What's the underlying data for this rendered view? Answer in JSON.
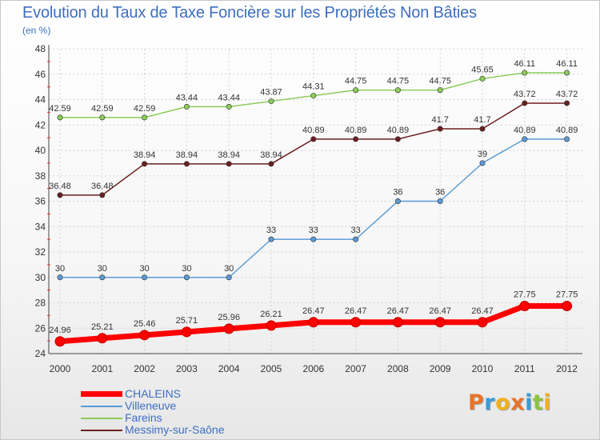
{
  "title": "Evolution du Taux de Taxe Foncière sur les Propriétés Non Bâties",
  "subtitle": "(en %)",
  "logo_letters": [
    "P",
    "r",
    "o",
    "x",
    "i",
    "t",
    "i"
  ],
  "logo_colors": [
    "#e8742a",
    "#3a9bd6",
    "#f1b11b",
    "#e8742a",
    "#3a9bd6",
    "#8bc53f",
    "#f1b11b"
  ],
  "chart_data": {
    "type": "line",
    "categories": [
      "2000",
      "2001",
      "2002",
      "2003",
      "2004",
      "2005",
      "2006",
      "2007",
      "2008",
      "2009",
      "2010",
      "2011",
      "2012"
    ],
    "ylim": [
      24,
      48
    ],
    "yticks": [
      "24",
      "26",
      "28",
      "30",
      "32",
      "34",
      "36",
      "38",
      "40",
      "42",
      "44",
      "46",
      "48"
    ],
    "grid": true,
    "series": [
      {
        "name": "Fareins",
        "color": "#8ccc5a",
        "values": [
          42.59,
          42.59,
          42.59,
          43.44,
          43.44,
          43.87,
          44.31,
          44.75,
          44.75,
          44.75,
          45.65,
          46.11,
          46.11
        ],
        "labels": [
          "42.59",
          "42.59",
          "42.59",
          "43.44",
          "43.44",
          "43.87",
          "44.31",
          "44.75",
          "44.75",
          "44.75",
          "45.65",
          "46.11",
          "46.11"
        ]
      },
      {
        "name": "Messimy-sur-Saône",
        "color": "#6b1f1f",
        "values": [
          36.48,
          36.48,
          38.94,
          38.94,
          38.94,
          38.94,
          40.89,
          40.89,
          40.89,
          41.7,
          41.7,
          43.72,
          43.72
        ],
        "labels": [
          "36.48",
          "36.48",
          "38.94",
          "38.94",
          "38.94",
          "38.94",
          "40.89",
          "40.89",
          "40.89",
          "41.7",
          "41.7",
          "43.72",
          "43.72"
        ]
      },
      {
        "name": "Villeneuve",
        "color": "#5b9bd5",
        "values": [
          30,
          30,
          30,
          30,
          30,
          33,
          33,
          33,
          36,
          36,
          39,
          40.89,
          40.89
        ],
        "labels": [
          "30",
          "30",
          "30",
          "30",
          "30",
          "33",
          "33",
          "33",
          "36",
          "36",
          "39",
          "40.89",
          "40.89"
        ]
      },
      {
        "name": "CHALEINS",
        "color": "#ff0000",
        "bold": true,
        "values": [
          24.96,
          25.21,
          25.46,
          25.71,
          25.96,
          26.21,
          26.47,
          26.47,
          26.47,
          26.47,
          26.47,
          27.75,
          27.75
        ],
        "labels": [
          "24.96",
          "25.21",
          "25.46",
          "25.71",
          "25.96",
          "26.21",
          "26.47",
          "26.47",
          "26.47",
          "26.47",
          "26.47",
          "27.75",
          "27.75"
        ]
      }
    ]
  },
  "legend": [
    {
      "label": "CHALEINS",
      "color": "#ff0000",
      "bold": true
    },
    {
      "label": "Villeneuve",
      "color": "#5b9bd5",
      "bold": false
    },
    {
      "label": "Fareins",
      "color": "#8ccc5a",
      "bold": false
    },
    {
      "label": "Messimy-sur-Saône",
      "color": "#6b1f1f",
      "bold": false
    }
  ]
}
